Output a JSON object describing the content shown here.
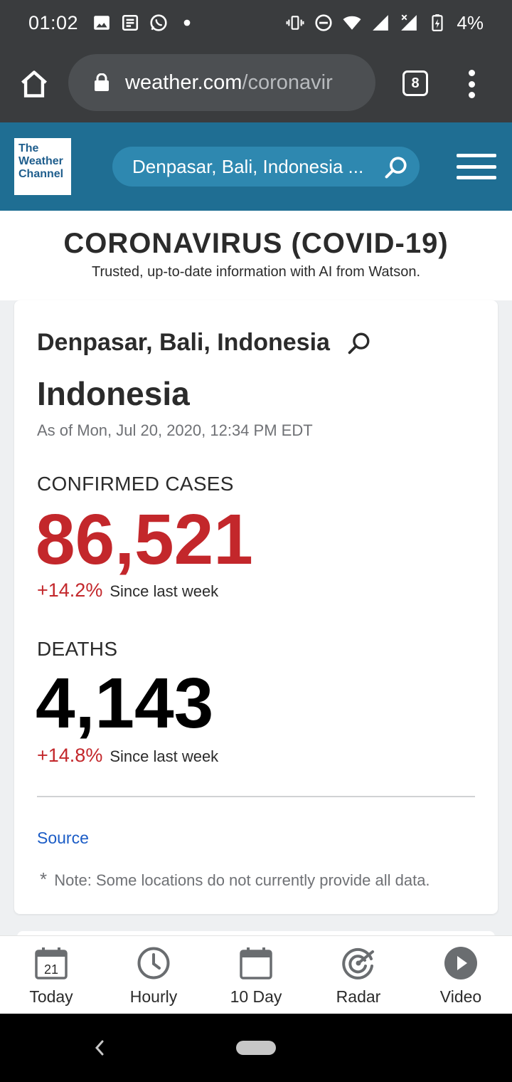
{
  "status_bar": {
    "time": "01:02",
    "battery": "4%",
    "left_icons": [
      "image-icon",
      "news-icon",
      "whatsapp-icon",
      "dot-icon"
    ],
    "right_icons": [
      "vibrate-icon",
      "dnd-icon",
      "wifi-icon",
      "signal-icon",
      "signal-x-icon",
      "battery-charging-icon"
    ]
  },
  "browser": {
    "url_domain": "weather.com",
    "url_path": "/coronavir",
    "tab_count": "8"
  },
  "site_header": {
    "logo_lines": [
      "The",
      "Weather",
      "Channel"
    ],
    "search_text": "Denpasar, Bali, Indonesia ...",
    "colors": {
      "header_bg": "#1f6e93",
      "search_bg": "#2e88b0"
    }
  },
  "page": {
    "title": "CORONAVIRUS (COVID-19)",
    "subtitle": "Trusted, up-to-date information with AI from Watson."
  },
  "card": {
    "location": "Denpasar, Bali, Indonesia",
    "country": "Indonesia",
    "as_of": "As of Mon, Jul 20, 2020, 12:34 PM EDT",
    "confirmed": {
      "label": "CONFIRMED CASES",
      "value": "86,521",
      "change": "+14.2%",
      "change_label": "Since last week",
      "color": "#c3272b"
    },
    "deaths": {
      "label": "DEATHS",
      "value": "4,143",
      "change": "+14.8%",
      "change_label": "Since last week",
      "color": "#000000"
    },
    "source_label": "Source",
    "note_star": "*",
    "note": "Note: Some locations do not currently provide all data."
  },
  "bottom_nav": {
    "items": [
      {
        "label": "Today",
        "icon": "calendar-day-icon",
        "badge": "21"
      },
      {
        "label": "Hourly",
        "icon": "clock-icon"
      },
      {
        "label": "10 Day",
        "icon": "calendar-icon"
      },
      {
        "label": "Radar",
        "icon": "radar-icon"
      },
      {
        "label": "Video",
        "icon": "play-icon"
      }
    ]
  }
}
